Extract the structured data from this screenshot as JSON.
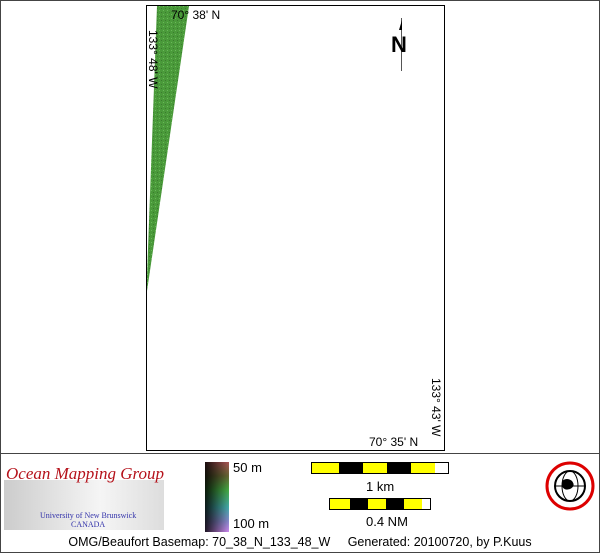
{
  "map": {
    "top_label": "70° 38' N",
    "left_label": "133° 48' W",
    "right_label": "133° 43' W",
    "bottom_label": "70° 35' N",
    "north_arrow": "N",
    "swath_color": "#4a9a3a"
  },
  "legend": {
    "org_name": "Ocean Mapping Group",
    "university": "University of New Brunswick",
    "country": "CANADA",
    "depth_top": "50 m",
    "depth_bottom": "100 m",
    "scale_km": "1 km",
    "scale_nm": "0.4 NM",
    "seal_text": "OCEAN MAPPING GROUP UNB"
  },
  "footer": {
    "basemap": "OMG/Beaufort Basemap: 70_38_N_133_48_W",
    "generated": "Generated: 20100720, by P.Kuus"
  }
}
